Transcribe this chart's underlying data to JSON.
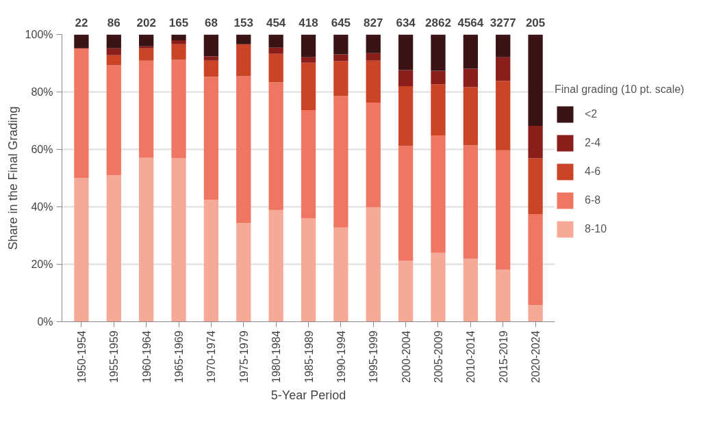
{
  "chart_data": {
    "type": "bar",
    "stacked": true,
    "xlabel": "5-Year Period",
    "ylabel": "Share in the Final Grading",
    "legend_title": "Final grading (10 pt. scale)",
    "categories": [
      "1950-1954",
      "1955-1959",
      "1960-1964",
      "1965-1969",
      "1970-1974",
      "1975-1979",
      "1980-1984",
      "1985-1989",
      "1990-1994",
      "1995-1999",
      "2000-2004",
      "2005-2009",
      "2010-2014",
      "2015-2019",
      "2020-2024"
    ],
    "series": [
      {
        "name": "8-10",
        "color": "#f7a998",
        "values": [
          50.0,
          51.0,
          57.1,
          56.9,
          42.5,
          34.4,
          38.9,
          36.1,
          32.8,
          39.9,
          21.2,
          24.0,
          21.9,
          18.1,
          5.8
        ]
      },
      {
        "name": "6-8",
        "color": "#ef7662",
        "values": [
          45.2,
          38.3,
          33.8,
          34.3,
          42.8,
          51.1,
          44.5,
          37.6,
          45.8,
          36.4,
          40.0,
          40.9,
          39.5,
          41.6,
          31.7
        ]
      },
      {
        "name": "4-6",
        "color": "#cb4426",
        "values": [
          0,
          3.5,
          4.3,
          5.4,
          5.6,
          11.1,
          9.9,
          16.5,
          12.1,
          14.6,
          20.8,
          17.8,
          20.3,
          24.1,
          19.4
        ]
      },
      {
        "name": "2-4",
        "color": "#8b1e1b",
        "values": [
          0,
          2.4,
          0.7,
          1.4,
          1.5,
          0,
          2.1,
          1.9,
          2.4,
          2.6,
          5.6,
          4.7,
          6.4,
          8.3,
          11.3
        ]
      },
      {
        "name": "<2",
        "color": "#3a1414",
        "values": [
          4.8,
          4.8,
          4.1,
          2.0,
          7.6,
          3.4,
          4.6,
          7.9,
          6.9,
          6.5,
          12.4,
          12.6,
          11.9,
          7.9,
          31.8
        ]
      }
    ],
    "annotations": [
      "22",
      "86",
      "202",
      "165",
      "68",
      "153",
      "454",
      "418",
      "645",
      "827",
      "634",
      "2862",
      "4564",
      "3277",
      "205"
    ],
    "ylim": [
      0,
      100
    ],
    "yticks": [
      {
        "value": 0,
        "label": "0%"
      },
      {
        "value": 20,
        "label": "20%"
      },
      {
        "value": 40,
        "label": "40%"
      },
      {
        "value": 60,
        "label": "60%"
      },
      {
        "value": 80,
        "label": "80%"
      },
      {
        "value": 100,
        "label": "100%"
      }
    ],
    "grid": "y",
    "legend": "right"
  }
}
